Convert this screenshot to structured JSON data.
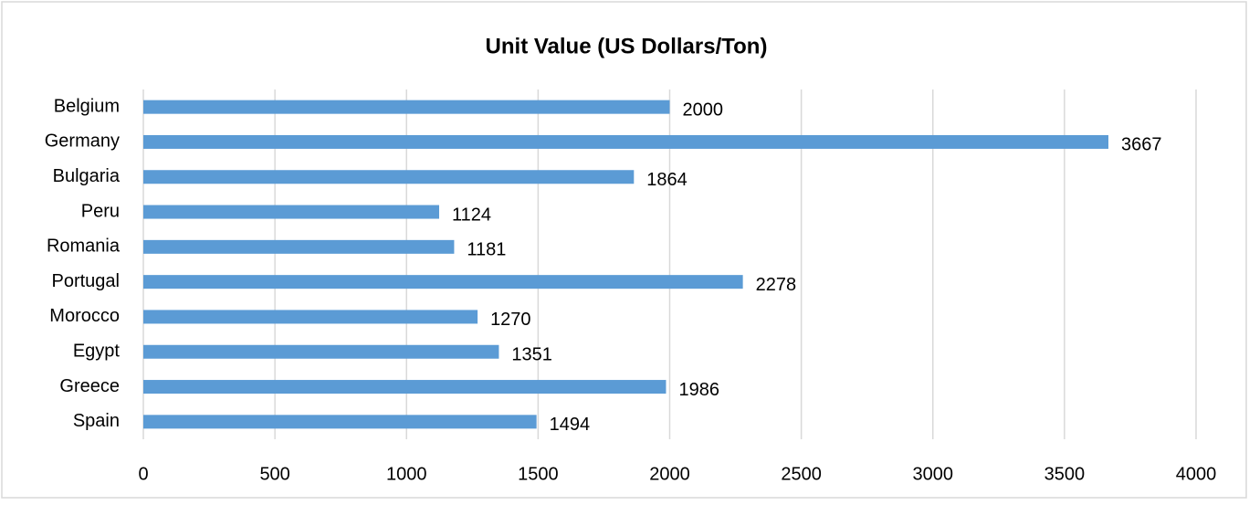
{
  "chart_data": {
    "type": "bar",
    "orientation": "horizontal",
    "title": "Unit Value (US Dollars/Ton)",
    "categories": [
      "Belgium",
      "Germany",
      "Bulgaria",
      "Peru",
      "Romania",
      "Portugal",
      "Morocco",
      "Egypt",
      "Greece",
      "Spain"
    ],
    "values": [
      2000,
      3667,
      1864,
      1124,
      1181,
      2278,
      1270,
      1351,
      1986,
      1494
    ],
    "color": "#5b9bd5",
    "xlim": [
      0,
      4000
    ],
    "xticks": [
      0,
      500,
      1000,
      1500,
      2000,
      2500,
      3000,
      3500,
      4000
    ],
    "grid": true
  }
}
